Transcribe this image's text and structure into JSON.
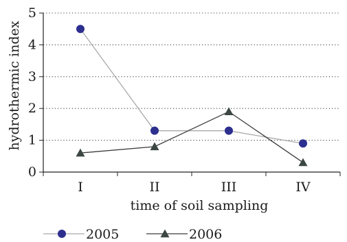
{
  "chart_data": {
    "type": "line",
    "categories": [
      "I",
      "II",
      "III",
      "IV"
    ],
    "series": [
      {
        "name": "2005",
        "values": [
          4.5,
          1.3,
          1.3,
          0.9
        ],
        "line_color": "#a9a9a9",
        "marker": "circle",
        "marker_color": "#2d2f8f"
      },
      {
        "name": "2006",
        "values": [
          0.6,
          0.8,
          1.9,
          0.3
        ],
        "line_color": "#3a3a3a",
        "marker": "triangle",
        "marker_color": "#3c4744"
      }
    ],
    "xlabel": "time of soil sampling",
    "ylabel": "hydrothermic index",
    "ylim": [
      0,
      5
    ],
    "yticks": [
      "0",
      "1",
      "2",
      "3",
      "4",
      "5"
    ],
    "grid": "horizontal dotted",
    "legend": "bottom"
  }
}
